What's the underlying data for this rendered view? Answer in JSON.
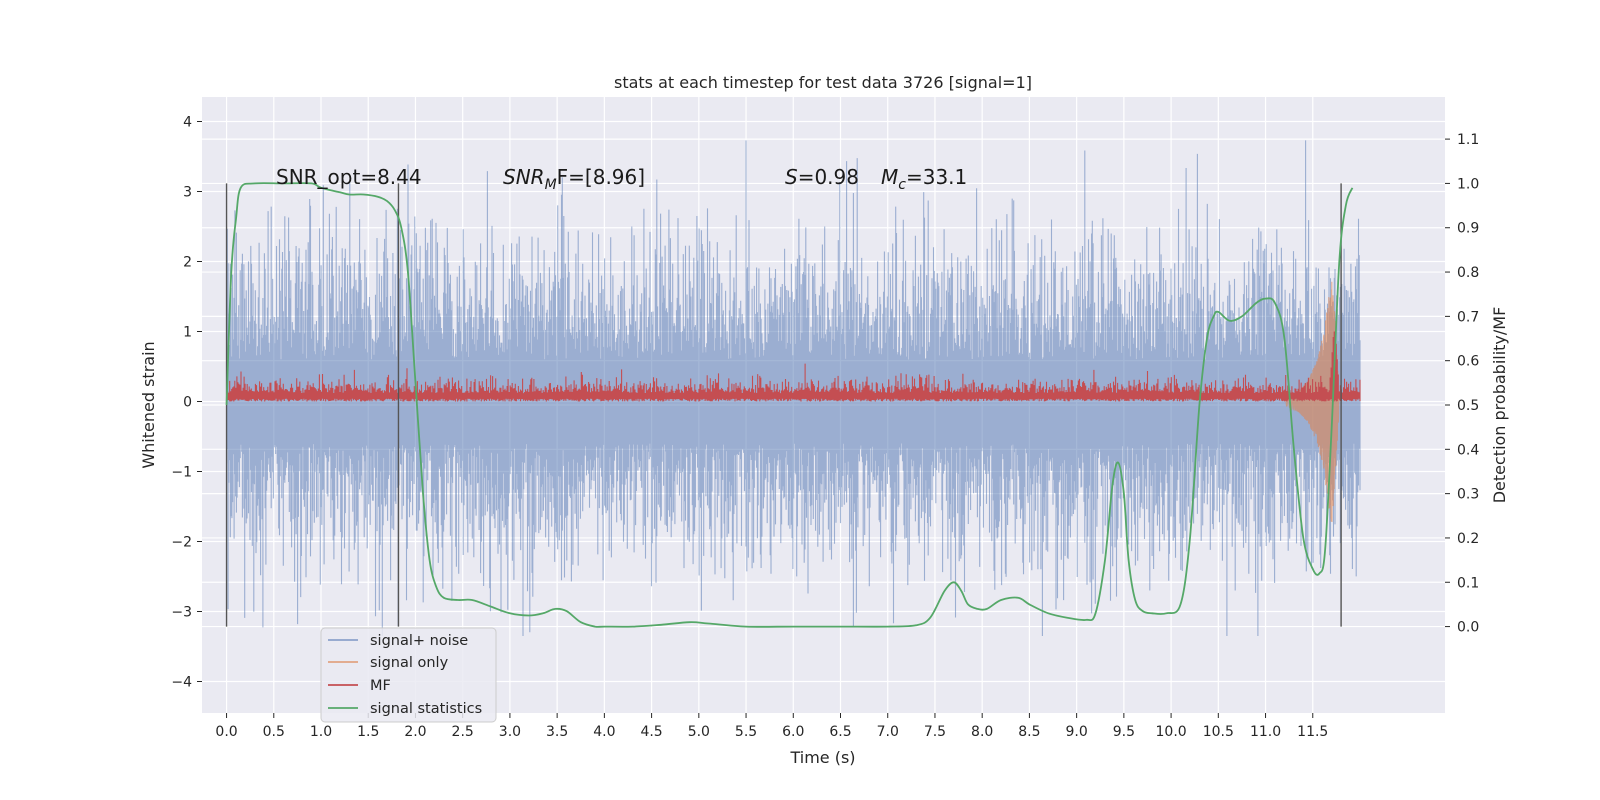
{
  "chart_data": {
    "type": "line",
    "title": "stats at each timestep for test data 3726 [signal=1]",
    "xlabel": "Time (s)",
    "ylabel": "Whitened strain",
    "y2label": "Detection probability/MF",
    "xlim": [
      -0.26,
      12.9
    ],
    "ylim": [
      -4.45,
      4.35
    ],
    "y2lim": [
      -0.195,
      1.195
    ],
    "x_ticks": [
      0.0,
      0.5,
      1.0,
      1.5,
      2.0,
      2.5,
      3.0,
      3.5,
      4.0,
      4.5,
      5.0,
      5.5,
      6.0,
      6.5,
      7.0,
      7.5,
      8.0,
      8.5,
      9.0,
      9.5,
      10.0,
      10.5,
      11.0,
      11.5
    ],
    "x_tick_labels": [
      "0.0",
      "0.5",
      "1.0",
      "1.5",
      "2.0",
      "2.5",
      "3.0",
      "3.5",
      "4.0",
      "4.5",
      "5.0",
      "5.5",
      "6.0",
      "6.5",
      "7.0",
      "7.5",
      "8.0",
      "8.5",
      "9.0",
      "9.5",
      "10.0",
      "10.5",
      "11.0",
      "11.5"
    ],
    "y_ticks": [
      4,
      3,
      2,
      1,
      0,
      -1,
      -2,
      -3,
      -4
    ],
    "y_tick_labels": [
      "4",
      "3",
      "2",
      "1",
      "0",
      "−1",
      "−2",
      "−3",
      "−4"
    ],
    "y2_ticks": [
      1.1,
      1.0,
      0.9,
      0.8,
      0.7,
      0.6,
      0.5,
      0.4,
      0.3,
      0.2,
      0.1,
      0.0
    ],
    "y2_tick_labels": [
      "1.1",
      "1.0",
      "0.9",
      "0.8",
      "0.7",
      "0.6",
      "0.5",
      "0.4",
      "0.3",
      "0.2",
      "0.1",
      "0.0"
    ],
    "grid": true,
    "legend_position": "lower-left",
    "colors": {
      "background": "#eaeaf2",
      "grid": "#ffffff",
      "signal_noise": "#4c72b0",
      "signal_only": "#dd8452",
      "mf": "#c44e52",
      "stats": "#55a868",
      "vline": "#555555"
    },
    "annotations": [
      {
        "text": "SNR_opt=8.44",
        "x": 0.22,
        "y": 1.0
      },
      {
        "text": "SNRMF=[8.96]",
        "x": 2.62,
        "y": 1.0
      },
      {
        "text": "S=0.98 Mc=33.1",
        "x": 5.6,
        "y": 1.0
      }
    ],
    "annotation_parts": {
      "snr_opt": "SNR_opt=8.44",
      "snr_mf_main": "SNR",
      "snr_mf_sub": "M",
      "snr_mf_tail": "F=[8.96]",
      "s_main": "S",
      "s_value": "=0.98",
      "mc_main": "M",
      "mc_sub": "c",
      "mc_value": "=33.1"
    },
    "vertical_lines_x": [
      0.0,
      1.82,
      11.8
    ],
    "series": [
      {
        "name": "signal+ noise",
        "axis": "left",
        "x_range": [
          0.0,
          12.0
        ],
        "envelope_typical": 1.9,
        "envelope_peak": 3.95,
        "note_values": "dense Gaussian-like whitened noise band spanning roughly -3.3 to 3.9"
      },
      {
        "name": "signal only",
        "axis": "left",
        "x": [
          11.2,
          11.35,
          11.45,
          11.55,
          11.6,
          11.65,
          11.7,
          11.72,
          11.75,
          11.78
        ],
        "amplitude": [
          0.05,
          0.15,
          0.3,
          0.6,
          0.9,
          1.3,
          1.8,
          1.5,
          0.8,
          0.1
        ]
      },
      {
        "name": "MF",
        "axis": "left",
        "x_range": [
          0.0,
          12.0
        ],
        "baseline": 0.0,
        "upper_typical": 0.4,
        "peak_x": 11.73,
        "peak_y": 1.0
      },
      {
        "name": "signal statistics",
        "axis": "right",
        "x": [
          0.0,
          0.05,
          0.1,
          0.15,
          0.3,
          0.6,
          0.9,
          1.0,
          1.2,
          1.3,
          1.45,
          1.6,
          1.7,
          1.78,
          1.85,
          1.92,
          2.0,
          2.08,
          2.15,
          2.22,
          2.3,
          2.45,
          2.6,
          2.8,
          3.0,
          3.2,
          3.35,
          3.48,
          3.6,
          3.75,
          3.9,
          4.0,
          4.3,
          4.6,
          4.9,
          5.1,
          5.5,
          6.0,
          6.5,
          7.0,
          7.3,
          7.45,
          7.6,
          7.7,
          7.78,
          7.85,
          7.95,
          8.05,
          8.2,
          8.38,
          8.5,
          8.7,
          8.9,
          9.1,
          9.2,
          9.3,
          9.38,
          9.44,
          9.5,
          9.55,
          9.62,
          9.7,
          9.8,
          9.95,
          10.1,
          10.2,
          10.3,
          10.38,
          10.45,
          10.5,
          10.62,
          10.75,
          10.9,
          11.0,
          11.1,
          11.2,
          11.3,
          11.4,
          11.5,
          11.57,
          11.63,
          11.7,
          11.78,
          11.85,
          11.92
        ],
        "y": [
          0.5,
          0.8,
          0.92,
          0.99,
          1.0,
          1.0,
          1.0,
          0.99,
          0.98,
          0.975,
          0.975,
          0.97,
          0.96,
          0.94,
          0.9,
          0.8,
          0.55,
          0.3,
          0.15,
          0.09,
          0.065,
          0.06,
          0.06,
          0.045,
          0.03,
          0.025,
          0.03,
          0.04,
          0.035,
          0.01,
          0.0,
          0.0,
          0.0,
          0.004,
          0.01,
          0.007,
          0.0,
          0.0,
          0.0,
          0.0,
          0.003,
          0.02,
          0.08,
          0.1,
          0.08,
          0.05,
          0.04,
          0.04,
          0.06,
          0.065,
          0.05,
          0.03,
          0.02,
          0.015,
          0.03,
          0.15,
          0.32,
          0.37,
          0.3,
          0.15,
          0.06,
          0.035,
          0.03,
          0.03,
          0.05,
          0.2,
          0.5,
          0.65,
          0.7,
          0.71,
          0.69,
          0.7,
          0.73,
          0.74,
          0.73,
          0.65,
          0.4,
          0.2,
          0.13,
          0.12,
          0.17,
          0.45,
          0.82,
          0.95,
          0.99
        ]
      }
    ],
    "legend": [
      {
        "key": "signal_noise",
        "label": "signal+ noise"
      },
      {
        "key": "signal_only",
        "label": "signal only"
      },
      {
        "key": "mf",
        "label": "MF"
      },
      {
        "key": "stats",
        "label": "signal statistics"
      }
    ]
  }
}
